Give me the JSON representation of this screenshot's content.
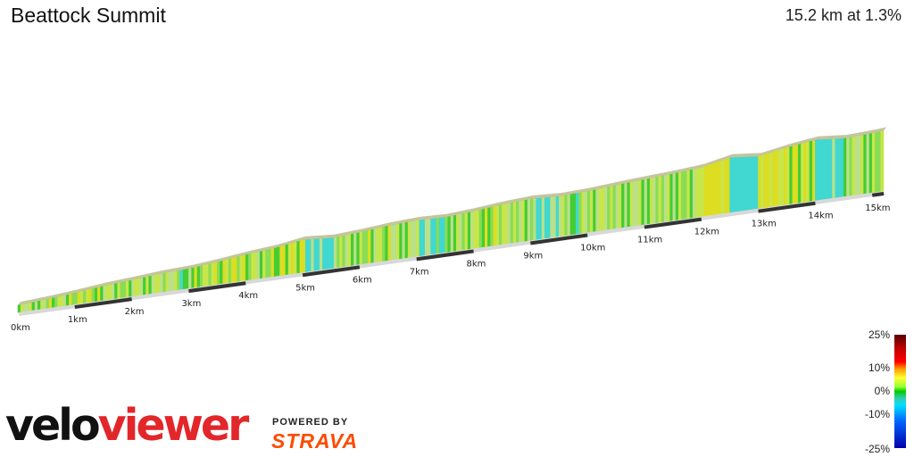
{
  "header": {
    "title": "Beattock Summit",
    "summary": "15.2 km at 1.3%"
  },
  "chart_data": {
    "type": "area",
    "title": "Beattock Summit",
    "distance_km": 15.2,
    "avg_gradient_percent": 1.3,
    "x_ticks": [
      "0km",
      "1km",
      "2km",
      "3km",
      "4km",
      "5km",
      "6km",
      "7km",
      "8km",
      "9km",
      "10km",
      "11km",
      "12km",
      "13km",
      "14km",
      "15km"
    ],
    "gradient_scale_labels": [
      "25%",
      "10%",
      "0%",
      "-10%",
      "-25%"
    ],
    "gradient_scale_values": [
      25,
      10,
      0,
      -10,
      -25
    ],
    "segments_km": [
      0,
      0.5,
      1,
      1.5,
      2,
      2.5,
      3,
      3.5,
      4,
      4.5,
      5,
      5.5,
      6,
      6.5,
      7,
      7.5,
      8,
      8.5,
      9,
      9.5,
      10,
      10.5,
      11,
      11.5,
      12,
      12.5,
      13,
      13.5,
      14,
      14.5,
      15,
      15.2
    ],
    "segment_gradients": [
      1.2,
      1.8,
      2.1,
      1.4,
      1.6,
      0.8,
      1.9,
      2.4,
      1.7,
      3.1,
      -1.5,
      1.2,
      1.8,
      1.0,
      -0.6,
      1.4,
      1.9,
      1.2,
      -1.0,
      0.8,
      1.5,
      1.3,
      1.1,
      1.6,
      4.2,
      -2.0,
      3.5,
      2.6,
      -1.8,
      0.9,
      1.6,
      0.5
    ],
    "colors": {
      "green": "#33cc33",
      "yellow": "#e6e633",
      "cyan": "#33dddd",
      "light_green": "#99dd55"
    }
  },
  "branding": {
    "logo_part1": "velo",
    "logo_part2": "viewer",
    "powered_by": "POWERED BY",
    "partner": "STRAVA"
  }
}
